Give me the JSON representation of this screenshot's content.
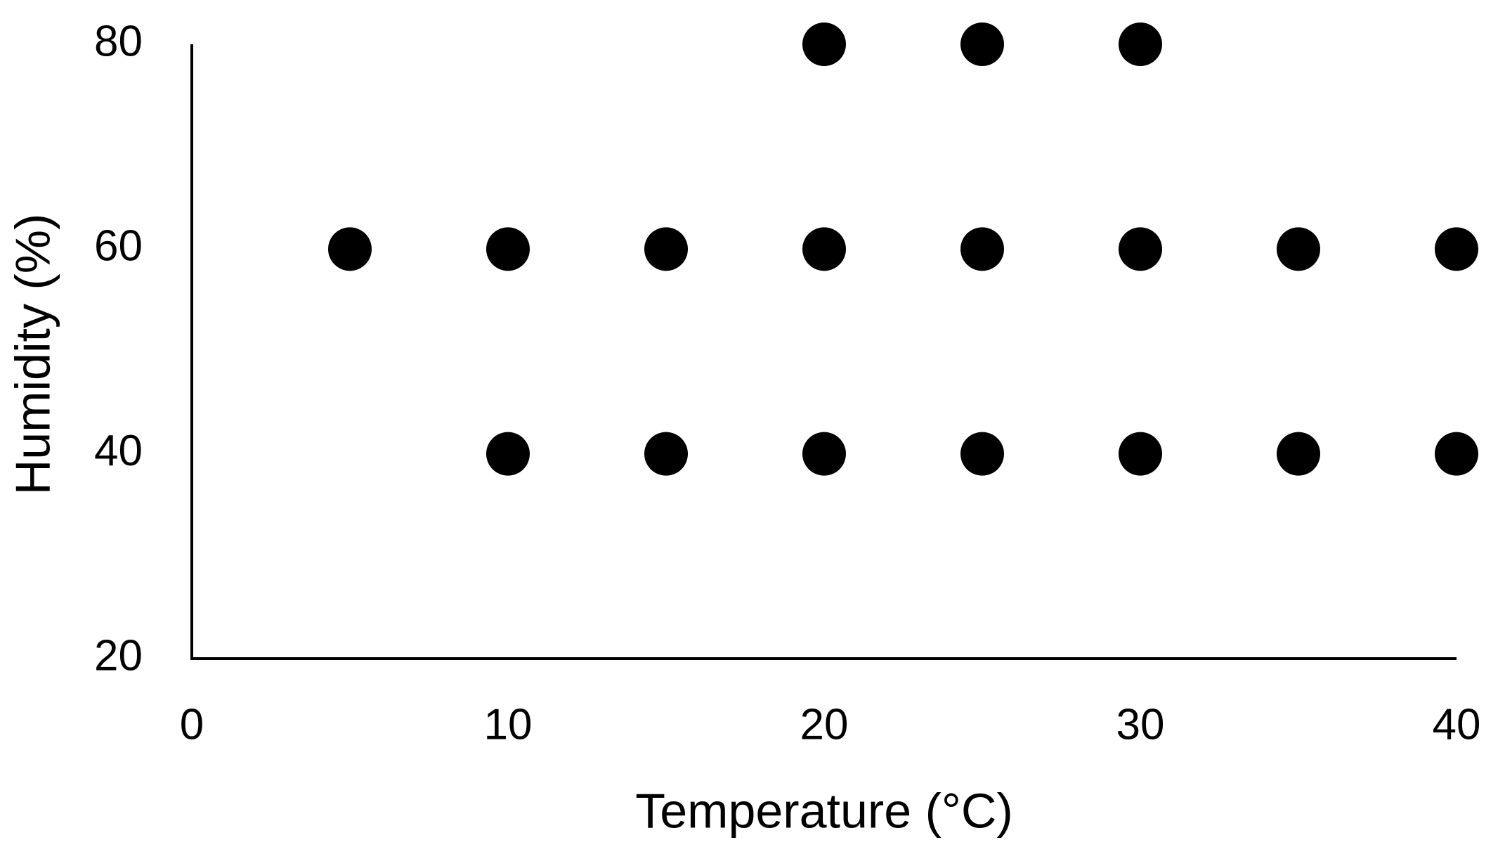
{
  "chart_data": {
    "type": "scatter",
    "x_label": "Temperature (°C)",
    "y_label": "Humidity (%)",
    "x": [
      20,
      25,
      30,
      5,
      10,
      15,
      20,
      25,
      30,
      35,
      40,
      10,
      15,
      20,
      25,
      30,
      35,
      40
    ],
    "values": [
      80,
      80,
      80,
      60,
      60,
      60,
      60,
      60,
      60,
      60,
      60,
      40,
      40,
      40,
      40,
      40,
      40,
      40
    ],
    "color": "#000000",
    "xlim": [
      0,
      40
    ],
    "xticks": [
      0,
      10,
      20,
      30,
      40
    ],
    "ylim": [
      20,
      80
    ],
    "yticks": [
      20,
      40,
      60,
      80
    ],
    "grid": false
  }
}
